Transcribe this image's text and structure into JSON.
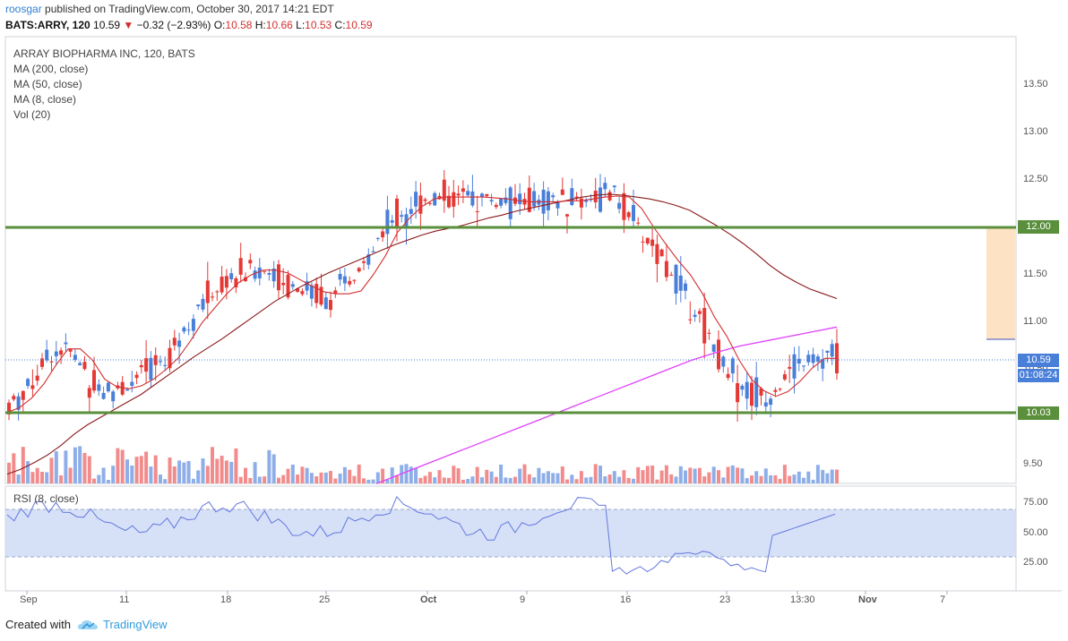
{
  "header": {
    "publisher": "roosgar",
    "published_text": " published on TradingView.com, October 30, 2017 14:21 EDT",
    "symbol": "BATS:ARRY, 120",
    "last": "10.59",
    "change": "−0.32 (−2.93%)",
    "o_label": "O:",
    "o_value": "10.58",
    "h_label": "H:",
    "h_value": "10.66",
    "l_label": "L:",
    "l_value": "10.53",
    "c_label": "C:",
    "c_value": "10.59"
  },
  "legend": [
    "ARRAY BIOPHARMA INC, 120, BATS",
    "MA (200, close)",
    "MA (50, close)",
    "MA (8, close)",
    "Vol (20)"
  ],
  "rsi_label": "RSI (8, close)",
  "price_tag": "10.59",
  "countdown_tag": "01:08:24",
  "level_tags": [
    "12.00",
    "10.03"
  ],
  "footer": {
    "created_with": "Created with",
    "brand": "TradingView"
  },
  "colors": {
    "up": "#4a7fd9",
    "down": "#e53935",
    "ma8": "#d32f2f",
    "ma50": "#8b1a1a",
    "ma200": "#e040fb",
    "level": "#5a8f3c",
    "rsi": "#6677dd",
    "rsi_band": "#cfdcf7",
    "vol_up": "#8eaee8",
    "vol_down": "#f28c8c",
    "zone": "#fde3c3"
  },
  "chart_data": {
    "type": "candlestick",
    "price_axis": {
      "ticks": [
        9.5,
        10.0,
        10.5,
        11.0,
        11.5,
        12.0,
        12.5,
        13.0,
        13.5
      ]
    },
    "x_tick_labels": [
      "Sep",
      "11",
      "18",
      "25",
      "Oct",
      "9",
      "16",
      "23",
      "13:30",
      "Nov",
      "7"
    ],
    "horizontal_levels": [
      12.0,
      10.03
    ],
    "last_price": 10.59,
    "ma8_close": [
      10.05,
      10.1,
      10.2,
      10.35,
      10.55,
      10.72,
      10.72,
      10.6,
      10.4,
      10.32,
      10.3,
      10.33,
      10.4,
      10.5,
      10.62,
      10.8,
      11.0,
      11.15,
      11.3,
      11.42,
      11.5,
      11.55,
      11.55,
      11.52,
      11.45,
      11.38,
      11.32,
      11.3,
      11.3,
      11.33,
      11.5,
      11.7,
      11.95,
      12.1,
      12.22,
      12.3,
      12.32,
      12.32,
      12.32,
      12.32,
      12.31,
      12.3,
      12.28,
      12.27,
      12.27,
      12.27,
      12.28,
      12.28,
      12.3,
      12.32,
      12.33,
      12.32,
      12.2,
      12.0,
      11.82,
      11.65,
      11.5,
      11.3,
      11.05,
      10.85,
      10.6,
      10.4,
      10.28,
      10.22,
      10.27,
      10.38,
      10.52,
      10.62,
      10.62
    ],
    "ma50_close": [
      9.4,
      9.45,
      9.52,
      9.6,
      9.7,
      9.82,
      9.92,
      10.0,
      10.08,
      10.16,
      10.24,
      10.34,
      10.44,
      10.54,
      10.64,
      10.73,
      10.82,
      10.92,
      11.02,
      11.12,
      11.22,
      11.3,
      11.38,
      11.45,
      11.52,
      11.58,
      11.64,
      11.7,
      11.76,
      11.82,
      11.87,
      11.92,
      11.96,
      11.99,
      12.02,
      12.06,
      12.1,
      12.13,
      12.17,
      12.2,
      12.23,
      12.26,
      12.29,
      12.32,
      12.34,
      12.35,
      12.34,
      12.32,
      12.3,
      12.27,
      12.23,
      12.18,
      12.1,
      12.02,
      11.93,
      11.83,
      11.72,
      11.6,
      11.5,
      11.42,
      11.35,
      11.3,
      11.25
    ],
    "ma200_close": [
      9.3,
      9.4,
      9.5,
      9.6,
      9.7,
      9.8,
      9.9,
      10.0,
      10.1,
      10.2,
      10.3,
      10.4,
      10.5,
      10.6,
      10.68,
      10.75,
      10.8,
      10.85,
      10.9,
      10.95
    ],
    "rsi": {
      "ticks": [
        25,
        50,
        75
      ],
      "band": [
        30,
        70
      ]
    }
  }
}
